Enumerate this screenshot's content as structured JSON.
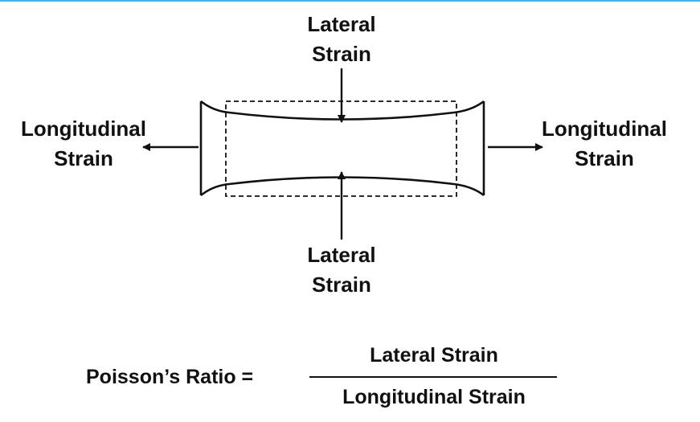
{
  "colors": {
    "ink": "#111111",
    "top_rule": "#39b7e6",
    "background": "#ffffff"
  },
  "labels": {
    "lateral_top": [
      "Lateral",
      "Strain"
    ],
    "lateral_bottom": [
      "Lateral",
      "Strain"
    ],
    "longitudinal_left": [
      "Longitudinal",
      "Strain"
    ],
    "longitudinal_right": [
      "Longitudinal",
      "Strain"
    ]
  },
  "formula": {
    "lhs": "Poisson’s Ratio =",
    "numerator": "Lateral Strain",
    "denominator": "Longitudinal Strain"
  }
}
